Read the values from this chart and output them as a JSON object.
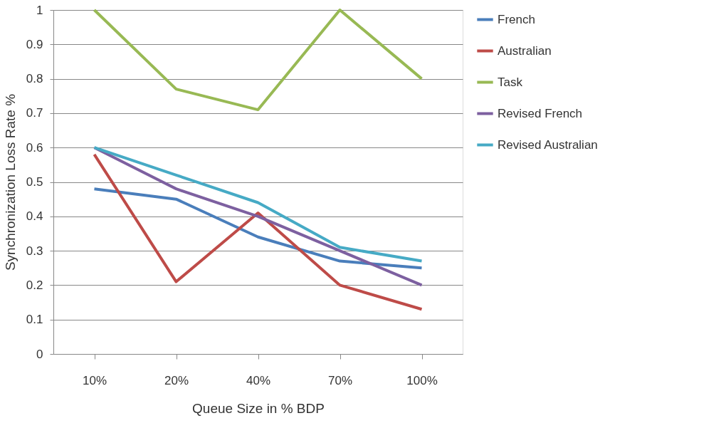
{
  "chart_data": {
    "type": "line",
    "xlabel": "Queue Size in % BDP",
    "ylabel": "Synchronization Loss Rate %",
    "categories": [
      "10%",
      "20%",
      "40%",
      "70%",
      "100%"
    ],
    "series": [
      {
        "name": "French",
        "color": "#4a7ebb",
        "values": [
          0.48,
          0.45,
          0.34,
          0.27,
          0.25
        ]
      },
      {
        "name": "Australian",
        "color": "#be4b48",
        "values": [
          0.58,
          0.21,
          0.41,
          0.2,
          0.13
        ]
      },
      {
        "name": "Task",
        "color": "#98b954",
        "values": [
          1.0,
          0.77,
          0.71,
          1.0,
          0.8
        ]
      },
      {
        "name": "Revised French",
        "color": "#7d60a0",
        "values": [
          0.6,
          0.48,
          0.4,
          0.3,
          0.2
        ]
      },
      {
        "name": "Revised Australian",
        "color": "#46aac5",
        "values": [
          0.6,
          0.52,
          0.44,
          0.31,
          0.27
        ]
      }
    ],
    "ylim": [
      0,
      1
    ],
    "yticks": [
      0,
      0.1,
      0.2,
      0.3,
      0.4,
      0.5,
      0.6,
      0.7,
      0.8,
      0.9,
      1
    ],
    "grid": "y",
    "legend": "right",
    "marker": "none",
    "line_style": "solid"
  }
}
